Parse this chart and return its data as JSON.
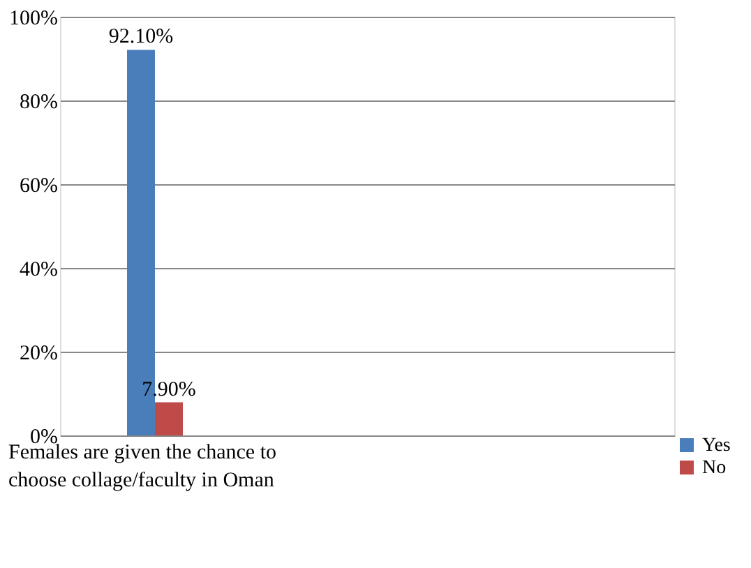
{
  "chart_data": {
    "type": "bar",
    "categories": [
      "Females are given the chance to choose collage/faculty in Oman"
    ],
    "series": [
      {
        "name": "Yes",
        "color": "#4a7ebb",
        "values": [
          92.1
        ],
        "value_labels": [
          "92.10%"
        ]
      },
      {
        "name": "No",
        "color": "#be4b48",
        "values": [
          7.9
        ],
        "value_labels": [
          "7.90%"
        ]
      }
    ],
    "ylim": [
      0,
      100
    ],
    "yticks": [
      {
        "value": 0,
        "label": "0%"
      },
      {
        "value": 20,
        "label": "20%"
      },
      {
        "value": 40,
        "label": "40%"
      },
      {
        "value": 60,
        "label": "60%"
      },
      {
        "value": 80,
        "label": "80%"
      },
      {
        "value": 100,
        "label": "100%"
      }
    ],
    "grid": "y",
    "legend": "bottom right"
  }
}
